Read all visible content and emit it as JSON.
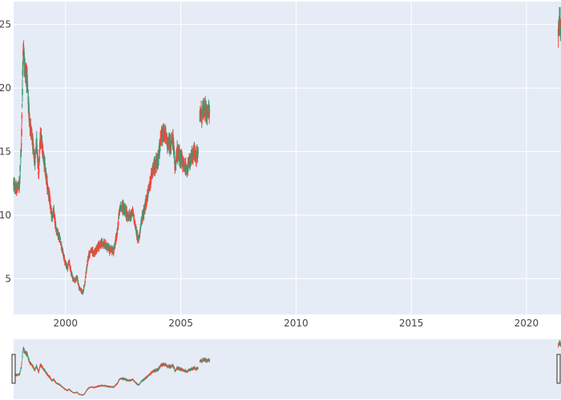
{
  "chart_data": {
    "type": "candlestick",
    "x_type": "date",
    "xlim": [
      "1997-10-01",
      "2021-07-01"
    ],
    "ylim": [
      2.2,
      26.8
    ],
    "x_ticks": [
      {
        "value": "2000-01-01",
        "label": "2000"
      },
      {
        "value": "2005-01-01",
        "label": "2005"
      },
      {
        "value": "2010-01-01",
        "label": "2010"
      },
      {
        "value": "2015-01-01",
        "label": "2015"
      },
      {
        "value": "2020-01-01",
        "label": "2020"
      }
    ],
    "y_ticks": [
      {
        "value": 5,
        "label": "5"
      },
      {
        "value": 10,
        "label": "10"
      },
      {
        "value": 15,
        "label": "15"
      },
      {
        "value": 20,
        "label": "20"
      },
      {
        "value": 25,
        "label": "25"
      }
    ],
    "grid": true,
    "rangeslider": true,
    "colors": {
      "increasing": "#3D9970",
      "decreasing": "#FF4136",
      "plot_bg": "#E5ECF6",
      "grid": "#FFFFFF"
    },
    "series": [
      {
        "segments": [
          {
            "points": [
              [
                "1997-10-01",
                12.5
              ],
              [
                "1997-11-15",
                12.0
              ],
              [
                "1998-01-01",
                12.4
              ],
              [
                "1998-02-01",
                15.5
              ],
              [
                "1998-03-01",
                23.2
              ],
              [
                "1998-04-01",
                21.5
              ],
              [
                "1998-05-01",
                20.8
              ],
              [
                "1998-06-01",
                18.0
              ],
              [
                "1998-07-01",
                16.8
              ],
              [
                "1998-08-01",
                15.5
              ],
              [
                "1998-09-01",
                14.2
              ],
              [
                "1998-10-01",
                15.9
              ],
              [
                "1998-11-01",
                13.3
              ],
              [
                "1998-12-01",
                16.3
              ],
              [
                "1999-01-01",
                15.2
              ],
              [
                "1999-02-01",
                14.2
              ],
              [
                "1999-03-01",
                13.0
              ],
              [
                "1999-04-01",
                12.0
              ],
              [
                "1999-05-01",
                11.0
              ],
              [
                "1999-06-01",
                9.8
              ],
              [
                "1999-07-01",
                10.2
              ],
              [
                "1999-08-01",
                9.0
              ],
              [
                "1999-09-01",
                8.6
              ],
              [
                "1999-10-01",
                8.2
              ],
              [
                "1999-11-01",
                7.5
              ],
              [
                "1999-12-01",
                6.8
              ],
              [
                "2000-01-01",
                6.2
              ],
              [
                "2000-02-01",
                5.9
              ],
              [
                "2000-03-01",
                6.3
              ],
              [
                "2000-04-01",
                5.5
              ],
              [
                "2000-05-01",
                5.0
              ],
              [
                "2000-06-01",
                4.8
              ],
              [
                "2000-07-01",
                5.2
              ],
              [
                "2000-08-01",
                4.3
              ],
              [
                "2000-09-01",
                4.1
              ],
              [
                "2000-10-01",
                3.9
              ],
              [
                "2000-11-01",
                4.6
              ],
              [
                "2000-12-01",
                5.8
              ],
              [
                "2001-01-01",
                6.8
              ],
              [
                "2001-02-01",
                7.2
              ],
              [
                "2001-04-01",
                7.0
              ],
              [
                "2001-06-01",
                7.5
              ],
              [
                "2001-08-01",
                7.8
              ],
              [
                "2001-10-01",
                7.6
              ],
              [
                "2001-12-01",
                7.3
              ],
              [
                "2002-02-01",
                7.2
              ],
              [
                "2002-04-01",
                8.6
              ],
              [
                "2002-05-01",
                10.2
              ],
              [
                "2002-06-01",
                10.8
              ],
              [
                "2002-08-01",
                10.4
              ],
              [
                "2002-10-01",
                9.8
              ],
              [
                "2002-12-01",
                10.3
              ],
              [
                "2003-02-01",
                8.6
              ],
              [
                "2003-03-01",
                8.0
              ],
              [
                "2003-05-01",
                9.8
              ],
              [
                "2003-07-01",
                11.0
              ],
              [
                "2003-09-01",
                12.5
              ],
              [
                "2003-11-01",
                13.8
              ],
              [
                "2004-01-01",
                14.3
              ],
              [
                "2004-03-01",
                16.1
              ],
              [
                "2004-05-01",
                16.4
              ],
              [
                "2004-06-01",
                15.6
              ],
              [
                "2004-08-01",
                15.6
              ],
              [
                "2004-09-01",
                16.0
              ],
              [
                "2004-10-01",
                13.8
              ],
              [
                "2004-11-01",
                15.0
              ],
              [
                "2004-12-01",
                14.7
              ],
              [
                "2005-02-01",
                14.2
              ],
              [
                "2005-04-01",
                13.6
              ],
              [
                "2005-06-01",
                14.2
              ],
              [
                "2005-08-01",
                15.0
              ],
              [
                "2005-09-01",
                14.6
              ],
              [
                "2005-10-01",
                15.0
              ]
            ]
          },
          {
            "points": [
              [
                "2005-11-01",
                17.9
              ],
              [
                "2005-12-01",
                18.0
              ],
              [
                "2006-01-01",
                18.2
              ],
              [
                "2006-02-01",
                18.3
              ],
              [
                "2006-03-01",
                18.1
              ],
              [
                "2006-04-01",
                18.3
              ]
            ]
          },
          {
            "points": [
              [
                "2021-05-20",
                24.8
              ],
              [
                "2021-06-10",
                25.2
              ],
              [
                "2021-06-30",
                24.6
              ]
            ]
          }
        ]
      }
    ]
  }
}
